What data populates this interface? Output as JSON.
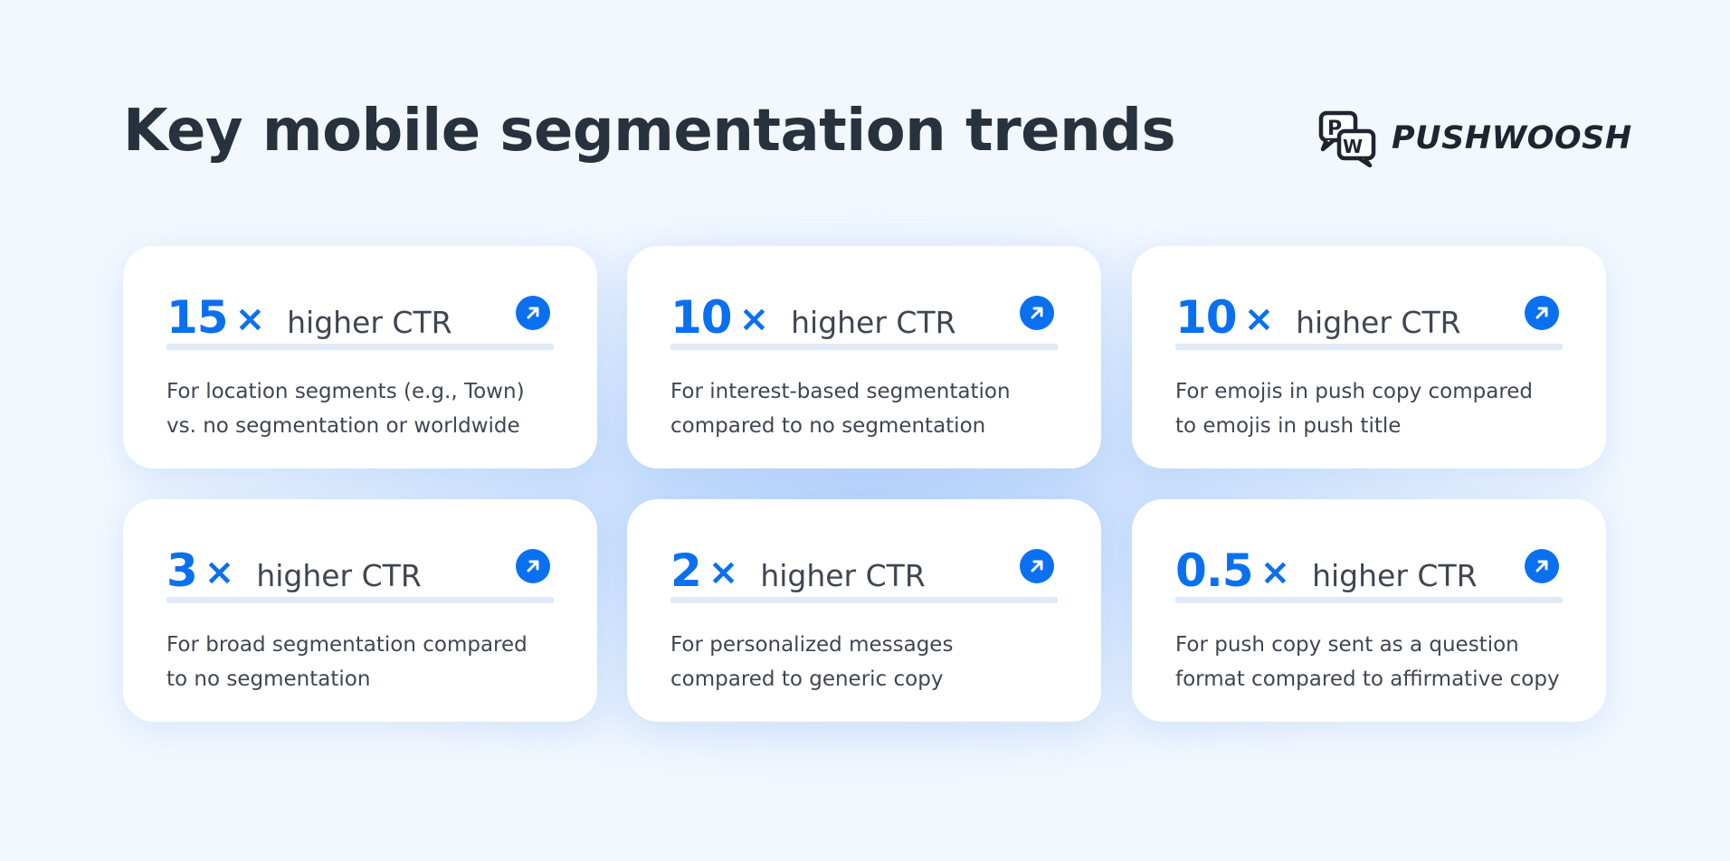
{
  "title": "Key mobile segmentation trends",
  "logo": {
    "wordmark": "PUSHWOOSH",
    "icon": "pushwoosh-pw-logo"
  },
  "colors": {
    "accent": "#0a70f0",
    "text": "#28323f",
    "background": "#f3f8fe"
  },
  "cards": [
    {
      "value": "15",
      "multiplier": "×",
      "metric": "higher CTR",
      "icon": "arrow-up-right-icon",
      "description": [
        "For location segments (e.g., Town)",
        "vs. no segmentation or worldwide"
      ]
    },
    {
      "value": "10",
      "multiplier": "×",
      "metric": "higher CTR",
      "icon": "arrow-up-right-icon",
      "description": [
        "For interest-based segmentation",
        "compared to no segmentation"
      ]
    },
    {
      "value": "10",
      "multiplier": "×",
      "metric": "higher CTR",
      "icon": "arrow-up-right-icon",
      "description": [
        "For emojis in push copy compared",
        "to emojis in push title"
      ]
    },
    {
      "value": "3",
      "multiplier": "×",
      "metric": "higher CTR",
      "icon": "arrow-up-right-icon",
      "description": [
        "For broad segmentation compared",
        "to no segmentation"
      ]
    },
    {
      "value": "2",
      "multiplier": "×",
      "metric": "higher CTR",
      "icon": "arrow-up-right-icon",
      "description": [
        "For personalized messages",
        "compared to generic copy"
      ]
    },
    {
      "value": "0.5",
      "multiplier": "×",
      "metric": "higher CTR",
      "icon": "arrow-up-right-icon",
      "description": [
        "For push copy sent as a question",
        "format compared to affirmative copy"
      ]
    }
  ]
}
